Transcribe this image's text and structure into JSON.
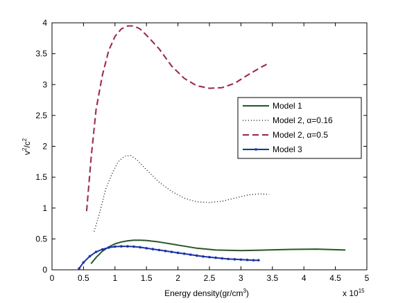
{
  "chart_data": {
    "type": "line",
    "title": "",
    "xlabel": "Energy density(gr/cm",
    "xlabel_sup": "3",
    "xlabel_close": ")",
    "ylabel_base": "v",
    "ylabel_sup1": "2",
    "ylabel_mid": "/c",
    "ylabel_sup2": "2",
    "x_multiplier_base": "x 10",
    "x_multiplier_exp": "15",
    "xlim": [
      0,
      5
    ],
    "ylim": [
      0,
      4
    ],
    "x_ticks": [
      "0",
      "0.5",
      "1",
      "1.5",
      "2",
      "2.5",
      "3",
      "3.5",
      "4",
      "4.5",
      "5"
    ],
    "y_ticks": [
      "0",
      "0.5",
      "1",
      "1.5",
      "2",
      "2.5",
      "3",
      "3.5",
      "4"
    ],
    "grid": false,
    "legend_position": "right-middle",
    "series": [
      {
        "name": "Model 1",
        "color": "#1f5a1f",
        "style": "solid",
        "marker": false,
        "x": [
          0.62,
          0.7,
          0.8,
          0.9,
          1.0,
          1.1,
          1.2,
          1.3,
          1.4,
          1.5,
          1.7,
          2.0,
          2.3,
          2.6,
          3.0,
          3.4,
          3.8,
          4.2,
          4.66
        ],
        "y": [
          0.1,
          0.2,
          0.3,
          0.37,
          0.42,
          0.45,
          0.47,
          0.48,
          0.48,
          0.475,
          0.45,
          0.4,
          0.35,
          0.32,
          0.31,
          0.32,
          0.33,
          0.335,
          0.32
        ]
      },
      {
        "name": "Model 2, α=0.16",
        "color": "#000000",
        "style": "dotted",
        "marker": false,
        "x": [
          0.67,
          0.75,
          0.85,
          0.95,
          1.05,
          1.15,
          1.25,
          1.35,
          1.5,
          1.7,
          1.9,
          2.1,
          2.3,
          2.5,
          2.7,
          2.9,
          3.1,
          3.3,
          3.45
        ],
        "y": [
          0.62,
          0.9,
          1.3,
          1.55,
          1.75,
          1.84,
          1.85,
          1.78,
          1.62,
          1.42,
          1.27,
          1.16,
          1.1,
          1.09,
          1.11,
          1.16,
          1.21,
          1.23,
          1.22
        ]
      },
      {
        "name": "Model 2, α=0.5",
        "color": "#b0184f",
        "style": "dashed",
        "marker": false,
        "x": [
          0.55,
          0.62,
          0.7,
          0.8,
          0.9,
          1.0,
          1.1,
          1.2,
          1.3,
          1.4,
          1.5,
          1.7,
          1.9,
          2.1,
          2.3,
          2.5,
          2.7,
          2.9,
          3.1,
          3.3,
          3.45
        ],
        "y": [
          0.95,
          1.8,
          2.6,
          3.15,
          3.55,
          3.78,
          3.9,
          3.95,
          3.95,
          3.9,
          3.8,
          3.58,
          3.3,
          3.1,
          2.98,
          2.94,
          2.95,
          3.02,
          3.15,
          3.27,
          3.35
        ]
      },
      {
        "name": "Model 3",
        "color": "#1030c8",
        "style": "solid",
        "marker": true,
        "x": [
          0.43,
          0.5,
          0.6,
          0.7,
          0.8,
          0.9,
          1.0,
          1.1,
          1.2,
          1.3,
          1.4,
          1.5,
          1.6,
          1.7,
          1.8,
          1.9,
          2.0,
          2.1,
          2.2,
          2.3,
          2.4,
          2.5,
          2.6,
          2.7,
          2.8,
          2.9,
          3.0,
          3.1,
          3.2,
          3.28
        ],
        "y": [
          0.02,
          0.12,
          0.22,
          0.29,
          0.33,
          0.36,
          0.375,
          0.38,
          0.38,
          0.375,
          0.365,
          0.35,
          0.335,
          0.32,
          0.305,
          0.29,
          0.275,
          0.26,
          0.245,
          0.23,
          0.215,
          0.205,
          0.195,
          0.185,
          0.175,
          0.17,
          0.165,
          0.16,
          0.155,
          0.155
        ]
      }
    ]
  }
}
